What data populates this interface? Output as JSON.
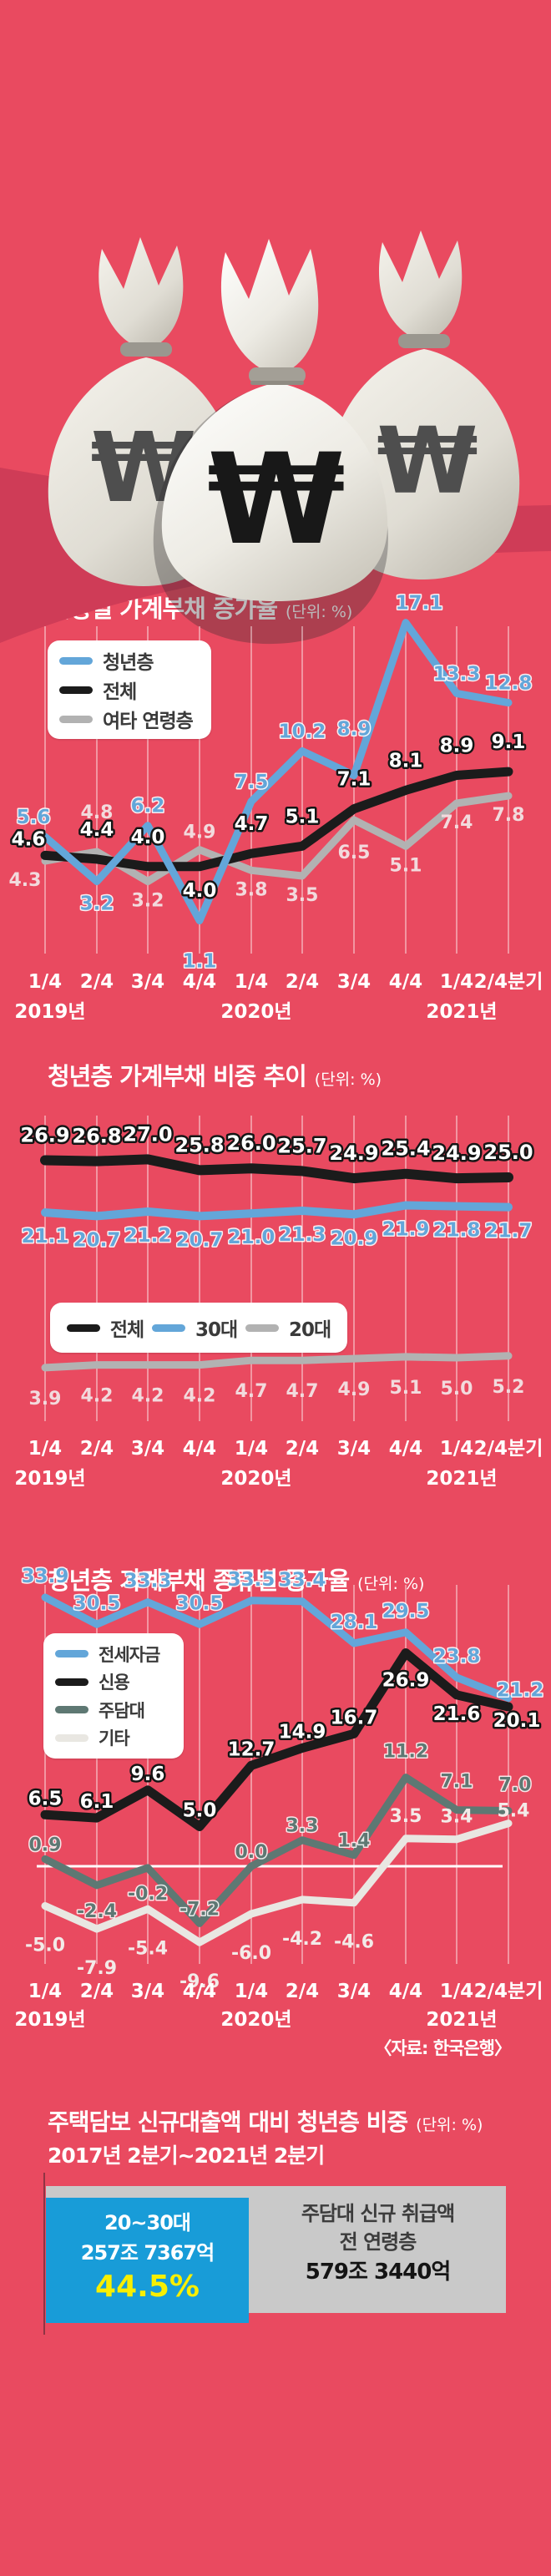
{
  "canvas": {
    "bg": "#e94a60"
  },
  "money_bags": {
    "symbol": "₩",
    "bag_color": "#efede6",
    "shadow_color": "#cf3c57"
  },
  "source_note": "〈자료: 한국은행〉",
  "chart_data": [
    {
      "type": "line",
      "title": "연령별 가계부채 증가율",
      "unit": "(단위: %)",
      "x_tick_labels": [
        "1/4",
        "2/4",
        "3/4",
        "4/4",
        "1/4",
        "2/4",
        "3/4",
        "4/4",
        "1/4",
        "2/4분기"
      ],
      "year_labels": [
        "2019년",
        "2020년",
        "2021년"
      ],
      "legend_position": "left-top-vertical",
      "grid": true,
      "series": [
        {
          "name": "청년층",
          "color": "#63a6d9",
          "values": [
            "5.6",
            "3.2",
            "6.2",
            "1.1",
            "7.5",
            "10.2",
            "8.9",
            "17.1",
            "13.3",
            "12.8"
          ]
        },
        {
          "name": "전체",
          "color": "#1b1b1b",
          "values": [
            "4.6",
            "4.4",
            "4.0",
            "4.0",
            "4.7",
            "5.1",
            "7.1",
            "8.1",
            "8.9",
            "9.1"
          ]
        },
        {
          "name": "여타 연령층",
          "color": "#b2b2b2",
          "values": [
            "4.3",
            "4.8",
            "3.2",
            "4.9",
            "3.8",
            "3.5",
            "6.5",
            "5.1",
            "7.4",
            "7.8"
          ]
        }
      ]
    },
    {
      "type": "line",
      "title": "청년층 가계부채 비중 추이",
      "unit": "(단위: %)",
      "x_tick_labels": [
        "1/4",
        "2/4",
        "3/4",
        "4/4",
        "1/4",
        "2/4",
        "3/4",
        "4/4",
        "1/4",
        "2/4분기"
      ],
      "year_labels": [
        "2019년",
        "2020년",
        "2021년"
      ],
      "legend_position": "center-horizontal",
      "grid": true,
      "series": [
        {
          "name": "전체",
          "color": "#1b1b1b",
          "values": [
            "26.9",
            "26.8",
            "27.0",
            "25.8",
            "26.0",
            "25.7",
            "24.9",
            "25.4",
            "24.9",
            "25.0"
          ]
        },
        {
          "name": "30대",
          "color": "#63a6d9",
          "values": [
            "21.1",
            "20.7",
            "21.2",
            "20.7",
            "21.0",
            "21.3",
            "20.9",
            "21.9",
            "21.8",
            "21.7"
          ]
        },
        {
          "name": "20대",
          "color": "#b2b2b2",
          "values": [
            "3.9",
            "4.2",
            "4.2",
            "4.2",
            "4.7",
            "4.7",
            "4.9",
            "5.1",
            "5.0",
            "5.2"
          ]
        }
      ]
    },
    {
      "type": "line",
      "title": "청년층 가계부채 종류별 증가율",
      "unit": "(단위: %)",
      "x_tick_labels": [
        "1/4",
        "2/4",
        "3/4",
        "4/4",
        "1/4",
        "2/4",
        "3/4",
        "4/4",
        "1/4",
        "2/4분기"
      ],
      "year_labels": [
        "2019년",
        "2020년",
        "2021년"
      ],
      "legend_position": "left-vertical",
      "grid": true,
      "zero_baseline": true,
      "series": [
        {
          "name": "전세자금",
          "color": "#63a6d9",
          "values": [
            "33.9",
            "30.5",
            "33.3",
            "30.5",
            "33.5",
            "33.4",
            "28.1",
            "29.5",
            "23.8",
            "21.2"
          ]
        },
        {
          "name": "신용",
          "color": "#1b1b1b",
          "values": [
            "6.5",
            "6.1",
            "9.6",
            "5.0",
            "12.7",
            "14.9",
            "16.7",
            "26.9",
            "21.6",
            "20.1"
          ]
        },
        {
          "name": "주담대",
          "color": "#5e7873",
          "values": [
            "0.9",
            "-2.4",
            "-0.2",
            "-7.2",
            "0.0",
            "3.3",
            "1.4",
            "11.2",
            "7.1",
            "7.0"
          ]
        },
        {
          "name": "기타",
          "color": "#e9e7e2",
          "values": [
            "-5.0",
            "-7.9",
            "-5.4",
            "-9.6",
            "-6.0",
            "-4.2",
            "-4.6",
            "3.5",
            "3.4",
            "5.4"
          ]
        }
      ]
    },
    {
      "type": "bar",
      "title": "주택담보 신규대출액 대비 청년층 비중",
      "unit": "(단위: %)",
      "subtitle": "2017년 2분기~2021년 2분기",
      "bars": [
        {
          "group": "20~30대",
          "amount": "257조 7367억",
          "share": "44.5%",
          "color": "#189cd8"
        },
        {
          "group_line1": "주담대 신규 취급액",
          "group_line2": "전 연령층",
          "amount": "579조 3440억",
          "color": "#c9c9c9"
        }
      ]
    }
  ]
}
